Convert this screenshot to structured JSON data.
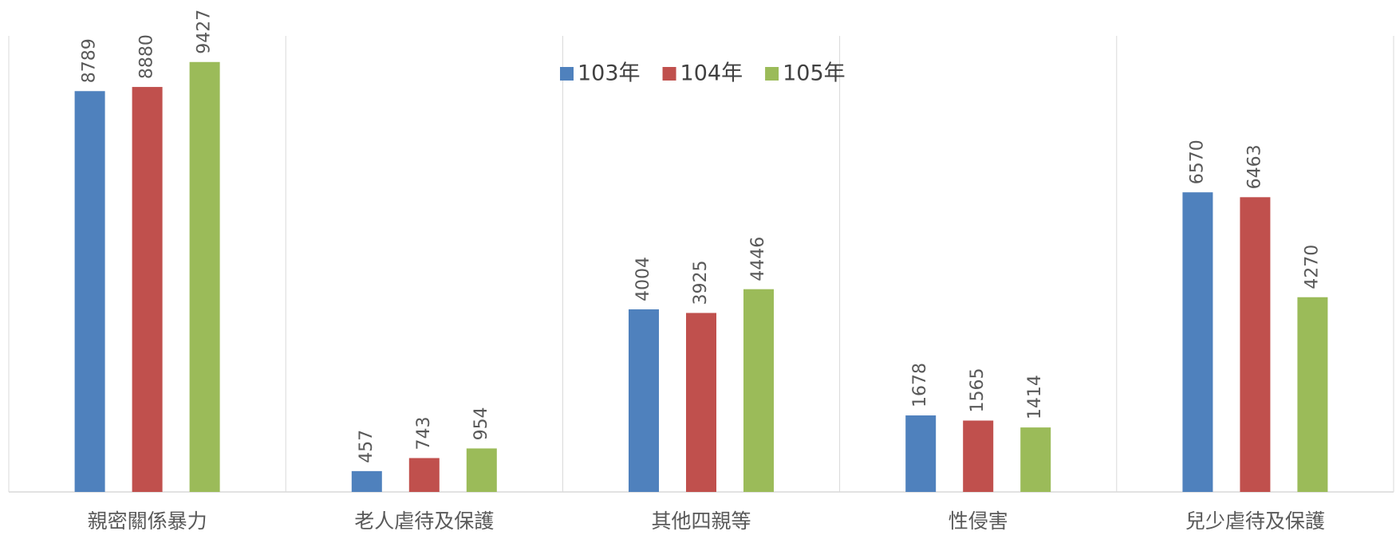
{
  "chart_data": {
    "type": "bar",
    "categories": [
      "親密關係暴力",
      "老人虐待及保護",
      "其他四親等",
      "性侵害",
      "兒少虐待及保護"
    ],
    "series": [
      {
        "name": "103年",
        "color": "#4f81bd",
        "values": [
          8789,
          457,
          4004,
          1678,
          6570
        ]
      },
      {
        "name": "104年",
        "color": "#c0504d",
        "values": [
          8880,
          743,
          3925,
          1565,
          6463
        ]
      },
      {
        "name": "105年",
        "color": "#9bbb59",
        "values": [
          9427,
          954,
          4446,
          1414,
          4270
        ]
      }
    ],
    "ylim": [
      0,
      10000
    ],
    "legend": "top"
  }
}
